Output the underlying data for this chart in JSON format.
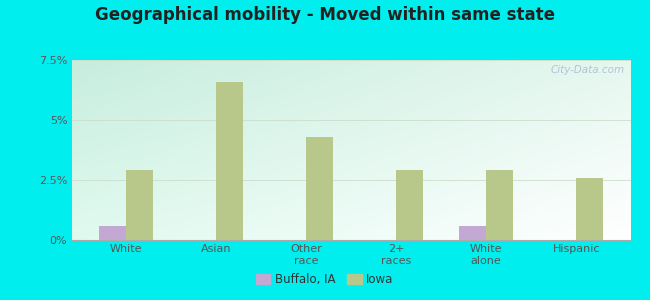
{
  "title": "Geographical mobility - Moved within same state",
  "categories": [
    "White",
    "Asian",
    "Other\nrace",
    "2+\nraces",
    "White\nalone",
    "Hispanic"
  ],
  "buffalo_values": [
    0.6,
    0.0,
    0.0,
    0.0,
    0.6,
    0.0
  ],
  "iowa_values": [
    2.9,
    6.6,
    4.3,
    2.9,
    2.9,
    2.6
  ],
  "buffalo_color": "#c4a8d4",
  "iowa_color": "#b8c88a",
  "ylim": [
    0,
    7.5
  ],
  "yticks": [
    0,
    2.5,
    5.0,
    7.5
  ],
  "ytick_labels": [
    "0%",
    "2.5%",
    "5%",
    "7.5%"
  ],
  "bar_width": 0.3,
  "legend_buffalo": "Buffalo, IA",
  "legend_iowa": "Iowa",
  "outer_bg": "#00eeee",
  "plot_bg_topleft": "#c8eedd",
  "plot_bg_topright": "#e8f8f0",
  "plot_bg_bottomleft": "#e0f8f0",
  "plot_bg_bottomright": "#ffffff"
}
